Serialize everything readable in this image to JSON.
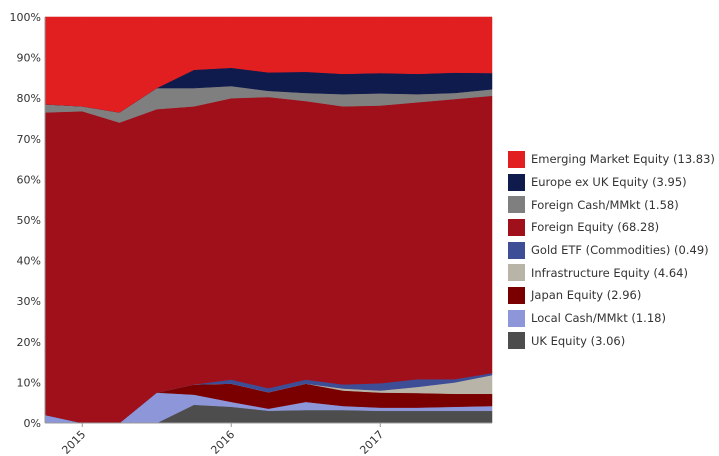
{
  "chart_data": {
    "type": "area",
    "stacked": true,
    "normalized": true,
    "x": [
      2014.75,
      2015.0,
      2015.25,
      2015.5,
      2015.75,
      2016.0,
      2016.25,
      2016.5,
      2016.75,
      2017.0,
      2017.25,
      2017.5,
      2017.75
    ],
    "ylim": [
      0,
      100
    ],
    "yticks": [
      "0%",
      "10%",
      "20%",
      "30%",
      "40%",
      "50%",
      "60%",
      "70%",
      "80%",
      "90%",
      "100%"
    ],
    "xticks": [
      {
        "value": 2015,
        "label": "2015"
      },
      {
        "value": 2016,
        "label": "2016"
      },
      {
        "value": 2017,
        "label": "2017"
      }
    ],
    "legend_position": "right",
    "series": [
      {
        "name": "UK Equity (3.06)",
        "color": "#4d4d4d",
        "values": [
          0,
          0,
          0,
          0,
          4.5,
          4.0,
          3.0,
          3.2,
          3.2,
          3.0,
          3.0,
          3.0,
          3.0
        ]
      },
      {
        "name": "Local Cash/MMkt (1.18)",
        "color": "#8c96d8",
        "values": [
          2.0,
          0,
          0,
          7.5,
          2.5,
          1.2,
          0.5,
          2.0,
          1.0,
          0.8,
          0.8,
          1.0,
          1.2
        ]
      },
      {
        "name": "Japan Equity (2.96)",
        "color": "#7a0000",
        "values": [
          0,
          0,
          0,
          0,
          2.5,
          4.5,
          4.0,
          4.5,
          3.8,
          3.7,
          3.6,
          3.2,
          3.0
        ]
      },
      {
        "name": "Infrastructure Equity (4.64)",
        "color": "#b8b5a8",
        "values": [
          0,
          0,
          0,
          0,
          0,
          0,
          0,
          0,
          0.5,
          0.5,
          1.5,
          2.8,
          4.6
        ]
      },
      {
        "name": "Gold ETF (Commodities) (0.49)",
        "color": "#3d4d96",
        "values": [
          0,
          0,
          0,
          0,
          0,
          1.0,
          1.0,
          1.0,
          1.0,
          1.8,
          1.9,
          0.8,
          0.5
        ]
      },
      {
        "name": "Foreign Equity (68.28)",
        "color": "#a0101b",
        "values": [
          74.5,
          76.8,
          74.0,
          69.8,
          68.5,
          69.3,
          71.0,
          68.6,
          68.5,
          68.4,
          68.2,
          69.0,
          68.3
        ]
      },
      {
        "name": "Foreign Cash/MMkt (1.58)",
        "color": "#7f7f7f",
        "values": [
          2.0,
          1.2,
          2.5,
          5.2,
          4.5,
          3.0,
          1.5,
          2.0,
          3.0,
          3.0,
          2.0,
          1.5,
          1.6
        ]
      },
      {
        "name": "Europe ex UK Equity (3.95)",
        "color": "#0f1a4d",
        "values": [
          0,
          0,
          0,
          0,
          4.5,
          4.5,
          4.5,
          5.2,
          5.0,
          5.0,
          5.0,
          5.0,
          4.0
        ]
      },
      {
        "name": "Emerging Market Equity (13.83)",
        "color": "#e11f21",
        "values": [
          21.5,
          22.0,
          23.5,
          17.5,
          13.0,
          12.5,
          13.5,
          13.5,
          14.0,
          13.8,
          14.0,
          13.7,
          13.8
        ]
      }
    ],
    "legend_order": [
      8,
      7,
      6,
      5,
      4,
      3,
      2,
      1,
      0
    ]
  }
}
